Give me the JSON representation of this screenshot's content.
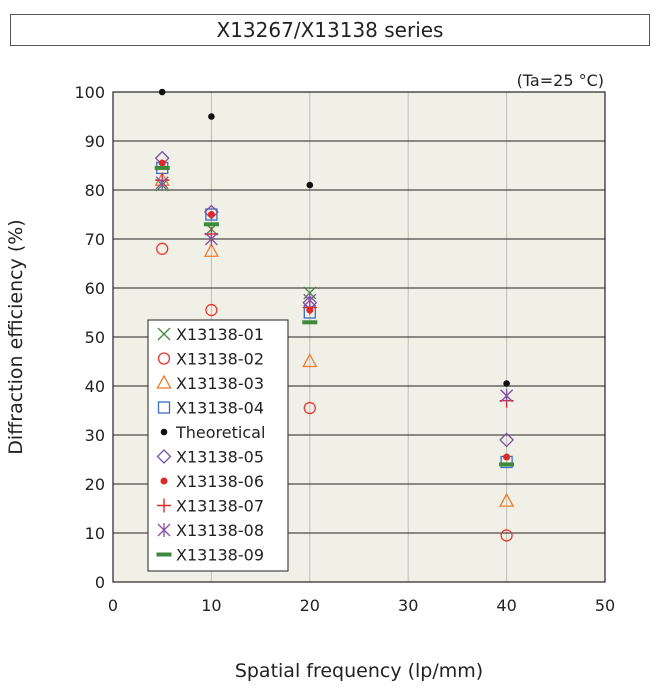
{
  "title": "X13267/X13138 series",
  "chart_data": {
    "type": "scatter",
    "title": "X13267/X13138 series",
    "annotation": "(Ta=25 °C)",
    "xlabel": "Spatial frequency (lp/mm)",
    "ylabel": "Diffraction efficiency (%)",
    "xlim": [
      0,
      50
    ],
    "ylim": [
      0,
      100
    ],
    "xticks": [
      0,
      10,
      20,
      30,
      40,
      50
    ],
    "yticks": [
      0,
      10,
      20,
      30,
      40,
      50,
      60,
      70,
      80,
      90,
      100
    ],
    "grid": "vertical and horizontal",
    "legend_position": "lower-left",
    "plot_background": "#f1f0e6",
    "series": [
      {
        "name": "X13138-01",
        "marker": "x",
        "color": "#3d8a3d",
        "points": [
          [
            5,
            81
          ],
          [
            10,
            72
          ],
          [
            20,
            59
          ],
          [
            40,
            38
          ]
        ]
      },
      {
        "name": "X13138-02",
        "marker": "circle",
        "color": "#e8382e",
        "points": [
          [
            5,
            68
          ],
          [
            10,
            55.5
          ],
          [
            20,
            35.5
          ],
          [
            40,
            9.5
          ]
        ]
      },
      {
        "name": "X13138-03",
        "marker": "triangle",
        "color": "#f07a2a",
        "points": [
          [
            5,
            82
          ],
          [
            10,
            67.5
          ],
          [
            20,
            45
          ],
          [
            40,
            16.5
          ]
        ]
      },
      {
        "name": "X13138-04",
        "marker": "square",
        "color": "#3a6fc0",
        "points": [
          [
            5,
            84.5
          ],
          [
            10,
            75
          ],
          [
            20,
            55
          ],
          [
            40,
            24.5
          ]
        ]
      },
      {
        "name": "Theoretical",
        "marker": "dot",
        "color": "#111111",
        "points": [
          [
            5,
            100
          ],
          [
            10,
            95
          ],
          [
            20,
            81
          ],
          [
            40,
            40.5
          ]
        ]
      },
      {
        "name": "X13138-05",
        "marker": "diamond",
        "color": "#7a4fa6",
        "points": [
          [
            5,
            86.5
          ],
          [
            10,
            75.5
          ],
          [
            20,
            57
          ],
          [
            40,
            29
          ]
        ]
      },
      {
        "name": "X13138-06",
        "marker": "filled-dot",
        "color": "#e02a26",
        "points": [
          [
            5,
            85.5
          ],
          [
            10,
            75
          ],
          [
            20,
            55.5
          ],
          [
            40,
            25.5
          ]
        ]
      },
      {
        "name": "X13138-07",
        "marker": "plus",
        "color": "#e02a26",
        "points": [
          [
            5,
            82
          ],
          [
            10,
            71
          ],
          [
            20,
            56
          ],
          [
            40,
            37
          ]
        ]
      },
      {
        "name": "X13138-08",
        "marker": "asterisk",
        "color": "#8a4fa6",
        "points": [
          [
            5,
            81.5
          ],
          [
            10,
            70
          ],
          [
            20,
            57.5
          ],
          [
            40,
            38
          ]
        ]
      },
      {
        "name": "X13138-09",
        "marker": "bar",
        "color": "#3d8a3d",
        "points": [
          [
            5,
            84.5
          ],
          [
            10,
            73
          ],
          [
            20,
            53
          ],
          [
            40,
            24
          ]
        ]
      }
    ]
  }
}
